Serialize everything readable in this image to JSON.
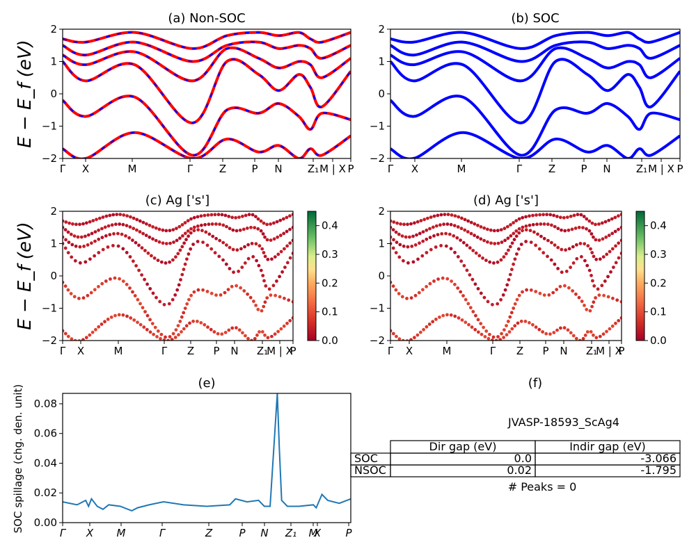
{
  "kpath_labels": [
    "Γ",
    "X",
    "M",
    "Γ",
    "Z",
    "P",
    "N",
    "Z₁",
    "M | X",
    "P"
  ],
  "y_label": "E − E_f (eV)",
  "y_ticks": [
    "2",
    "1",
    "0",
    "−1",
    "−2"
  ],
  "colorbar_ticks": [
    "0.4",
    "0.3",
    "0.2",
    "0.1",
    "0.0"
  ],
  "panels": {
    "a": {
      "title": "(a) Non-SOC"
    },
    "b": {
      "title": "(b) SOC"
    },
    "c": {
      "title": "(c)  Ag ['s']"
    },
    "d": {
      "title": "(d) Ag ['s']"
    },
    "e": {
      "title": "(e)"
    },
    "f": {
      "title": "(f)"
    }
  },
  "spillage": {
    "ylabel": "SOC spillage (chg. den. unit)",
    "y_ticks": [
      "0.08",
      "0.06",
      "0.04",
      "0.02",
      "0.00"
    ],
    "x_ticks": [
      "Γ",
      "X",
      "M",
      "Γ",
      "Z",
      "P",
      "N",
      "Z₁",
      "M",
      "X",
      "P"
    ]
  },
  "info": {
    "material": "JVASP-18593_ScAg4",
    "table": {
      "headers": [
        "Dir gap (eV)",
        "Indir gap (eV)"
      ],
      "rows": [
        {
          "label": "SOC",
          "dir": "0.0",
          "indir": "-3.066"
        },
        {
          "label": "NSOC",
          "dir": "0.02",
          "indir": "-1.795"
        }
      ]
    },
    "peaks": "# Peaks = 0"
  },
  "colors": {
    "nonsoc": "#ff0000",
    "soc": "#0000ff",
    "spillage": "#1f77b4"
  },
  "chart_data": [
    {
      "type": "line",
      "panel": "a",
      "title": "(a) Non-SOC",
      "ylabel": "E − E_f (eV)",
      "ylim": [
        -2,
        2
      ],
      "x_ticks": [
        "Γ",
        "X",
        "M",
        "Γ",
        "Z",
        "P",
        "N",
        "Z₁",
        "M | X",
        "P"
      ],
      "x": [
        0,
        0.08,
        0.25,
        0.45,
        0.57,
        0.68,
        0.75,
        0.82,
        0.86,
        0.9,
        1.0
      ],
      "series": [
        {
          "values": [
            -0.2,
            -0.7,
            -0.1,
            -1.9,
            -0.5,
            -0.6,
            -0.3,
            -0.7,
            -1.1,
            -0.6,
            -0.8
          ]
        },
        {
          "values": [
            1.0,
            0.4,
            0.9,
            -0.9,
            1.0,
            0.6,
            0.1,
            0.6,
            0.2,
            -0.4,
            0.7
          ]
        },
        {
          "values": [
            1.2,
            0.9,
            1.3,
            0.4,
            1.4,
            1.1,
            0.8,
            1.0,
            0.9,
            0.5,
            1.1
          ]
        },
        {
          "values": [
            1.5,
            1.2,
            1.6,
            1.0,
            1.5,
            1.6,
            1.4,
            1.5,
            1.4,
            1.1,
            1.5
          ]
        },
        {
          "values": [
            1.7,
            1.6,
            1.9,
            1.4,
            1.8,
            1.9,
            1.8,
            1.9,
            1.7,
            1.6,
            1.9
          ]
        },
        {
          "values": [
            -1.7,
            -2.0,
            -1.2,
            -2.0,
            -1.4,
            -1.8,
            -1.6,
            -2.0,
            -1.7,
            -1.9,
            -1.3
          ]
        }
      ]
    },
    {
      "type": "line",
      "panel": "b",
      "title": "(b) SOC",
      "ylim": [
        -2,
        2
      ],
      "x_ticks": [
        "Γ",
        "X",
        "M",
        "Γ",
        "Z",
        "P",
        "N",
        "Z₁",
        "M | X",
        "P"
      ],
      "x": [
        0,
        0.08,
        0.25,
        0.45,
        0.57,
        0.68,
        0.75,
        0.82,
        0.86,
        0.9,
        1.0
      ],
      "series": [
        {
          "values": [
            -0.2,
            -0.7,
            -0.1,
            -1.9,
            -0.5,
            -0.6,
            -0.3,
            -0.7,
            -1.1,
            -0.6,
            -0.8
          ]
        },
        {
          "values": [
            1.0,
            0.4,
            0.9,
            -0.9,
            1.0,
            0.6,
            0.1,
            0.6,
            0.2,
            -0.4,
            0.7
          ]
        },
        {
          "values": [
            1.2,
            0.9,
            1.3,
            0.4,
            1.4,
            1.1,
            0.8,
            1.0,
            0.9,
            0.5,
            1.1
          ]
        },
        {
          "values": [
            1.5,
            1.2,
            1.6,
            1.0,
            1.5,
            1.6,
            1.4,
            1.5,
            1.4,
            1.1,
            1.5
          ]
        },
        {
          "values": [
            1.7,
            1.6,
            1.9,
            1.4,
            1.8,
            1.9,
            1.8,
            1.9,
            1.7,
            1.6,
            1.9
          ]
        },
        {
          "values": [
            -1.7,
            -2.0,
            -1.2,
            -2.0,
            -1.4,
            -1.8,
            -1.6,
            -2.0,
            -1.7,
            -1.9,
            -1.3
          ]
        }
      ]
    },
    {
      "type": "scatter",
      "panel": "c",
      "title": "(c)  Ag ['s']",
      "ylabel": "E − E_f (eV)",
      "ylim": [
        -2,
        2
      ],
      "colorbar_range": [
        0.0,
        0.45
      ],
      "x_ticks": [
        "Γ",
        "X",
        "M",
        "Γ",
        "Z",
        "P",
        "N",
        "Z₁",
        "M | X",
        "P"
      ]
    },
    {
      "type": "scatter",
      "panel": "d",
      "title": "(d) Ag ['s']",
      "ylim": [
        -2,
        2
      ],
      "colorbar_range": [
        0.0,
        0.45
      ],
      "x_ticks": [
        "Γ",
        "X",
        "M",
        "Γ",
        "Z",
        "P",
        "N",
        "Z₁",
        "M | X",
        "P"
      ]
    },
    {
      "type": "line",
      "panel": "e",
      "title": "(e)",
      "ylabel": "SOC spillage (chg. den. unit)",
      "ylim": [
        0.0,
        0.087
      ],
      "x_ticks": [
        "Γ",
        "X",
        "M",
        "Γ",
        "Z",
        "P",
        "N",
        "Z₁",
        "M",
        "X",
        "P"
      ],
      "x": [
        0,
        0.05,
        0.08,
        0.09,
        0.1,
        0.12,
        0.14,
        0.16,
        0.2,
        0.24,
        0.26,
        0.3,
        0.35,
        0.42,
        0.5,
        0.58,
        0.6,
        0.64,
        0.68,
        0.7,
        0.72,
        0.745,
        0.752,
        0.76,
        0.78,
        0.82,
        0.87,
        0.88,
        0.9,
        0.92,
        0.96,
        1.0
      ],
      "series": [
        {
          "name": "",
          "values": [
            0.014,
            0.012,
            0.015,
            0.011,
            0.016,
            0.011,
            0.009,
            0.012,
            0.011,
            0.008,
            0.01,
            0.012,
            0.014,
            0.012,
            0.011,
            0.012,
            0.016,
            0.014,
            0.015,
            0.011,
            0.011,
            0.087,
            0.05,
            0.015,
            0.011,
            0.011,
            0.012,
            0.01,
            0.019,
            0.015,
            0.013,
            0.016
          ]
        }
      ]
    }
  ]
}
